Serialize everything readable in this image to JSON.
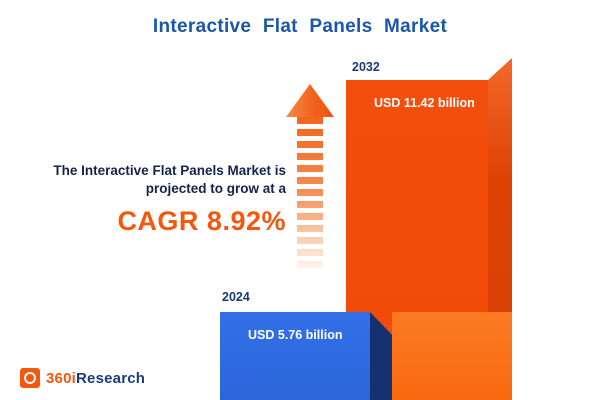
{
  "title": "Interactive Flat Panels Market",
  "annotation": {
    "line1": "The Interactive Flat Panels Market is",
    "line2": "projected to grow at a",
    "cagr": "CAGR 8.92%"
  },
  "bars": {
    "y2024": {
      "year": "2024",
      "value_label": "USD 5.76 billion"
    },
    "y2032": {
      "year": "2032",
      "value_label": "USD 11.42 billion"
    }
  },
  "logo": {
    "prefix": "360i",
    "suffix": "Research"
  },
  "colors": {
    "title_blue": "#1B57A8",
    "navy_text": "#13234B",
    "accent_orange": "#F4570E",
    "bar_blue": "#2E6BE2",
    "bar_blue_side": "#16316E",
    "bar_orange": "#F04A08",
    "bar_orange_light": "#F96A10",
    "year_label": "#1C3B73",
    "background": "#FFFFFF"
  },
  "chart_data": {
    "type": "bar",
    "title": "Interactive Flat Panels Market",
    "categories": [
      "2024",
      "2032"
    ],
    "values": [
      5.76,
      11.42
    ],
    "unit": "USD billion",
    "value_labels": [
      "USD 5.76 billion",
      "USD 11.42 billion"
    ],
    "cagr_percent": 8.92,
    "annotation": "The Interactive Flat Panels Market is projected to grow at a CAGR 8.92%",
    "series_colors": [
      "#2E6BE2",
      "#F04A08"
    ],
    "axes": "none",
    "gridlines": false,
    "legend": "none"
  }
}
